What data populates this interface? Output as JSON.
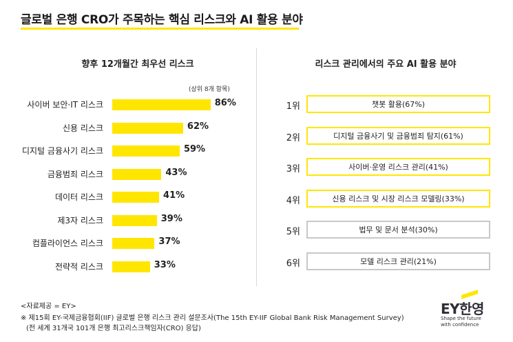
{
  "title": "글로벌 은행 CRO가 주목하는 핵심 리스크와 AI 활용 분야",
  "left": {
    "heading": "향후 12개월간 최우선 리스크",
    "note": "(상위 8개 항목)"
  },
  "chart_data": {
    "type": "bar",
    "orientation": "horizontal",
    "title": "향후 12개월간 최우선 리스크",
    "categories": [
      "사이버 보안·IT 리스크",
      "신용 리스크",
      "디지털 금융사기 리스크",
      "금융범죄 리스크",
      "데이터 리스크",
      "제3자 리스크",
      "컴플라이언스 리스크",
      "전략적 리스크"
    ],
    "values": [
      86,
      62,
      59,
      43,
      41,
      39,
      37,
      33
    ],
    "value_labels": [
      "86%",
      "62%",
      "59%",
      "43%",
      "41%",
      "39%",
      "37%",
      "33%"
    ],
    "xlim": [
      0,
      100
    ],
    "bar_color": "#ffe600"
  },
  "right": {
    "heading": "리스크 관리에서의 주요 AI 활용 분야",
    "items": [
      {
        "rank": "1위",
        "label": "챗봇 활용(67%)"
      },
      {
        "rank": "2위",
        "label": "디지털 금융사기 및 금융범죄 탐지(61%)"
      },
      {
        "rank": "3위",
        "label": "사이버·운영 리스크 관리(41%)"
      },
      {
        "rank": "4위",
        "label": "신용 리스크 및 시장 리스크 모델링(33%)"
      },
      {
        "rank": "5위",
        "label": "법무 및 문서 분석(30%)"
      },
      {
        "rank": "6위",
        "label": "모델 리스크 관리(21%)"
      }
    ],
    "highlight_color": "#ffe600",
    "muted_color": "#c8c8c8"
  },
  "source": "<자료제공 = EY>",
  "footnote1": "※ 제15회 EY-국제금융협회(IIF) 글로벌 은행 리스크 관리 설문조사(The 15th EY-IIF Global Bank Risk Management Survey)",
  "footnote2": "(전 세계 31개국 101개 은행 최고리스크책임자(CRO) 응답)",
  "logo": {
    "text": "EY한영",
    "tagline1": "Shape the future",
    "tagline2": "with confidence"
  }
}
